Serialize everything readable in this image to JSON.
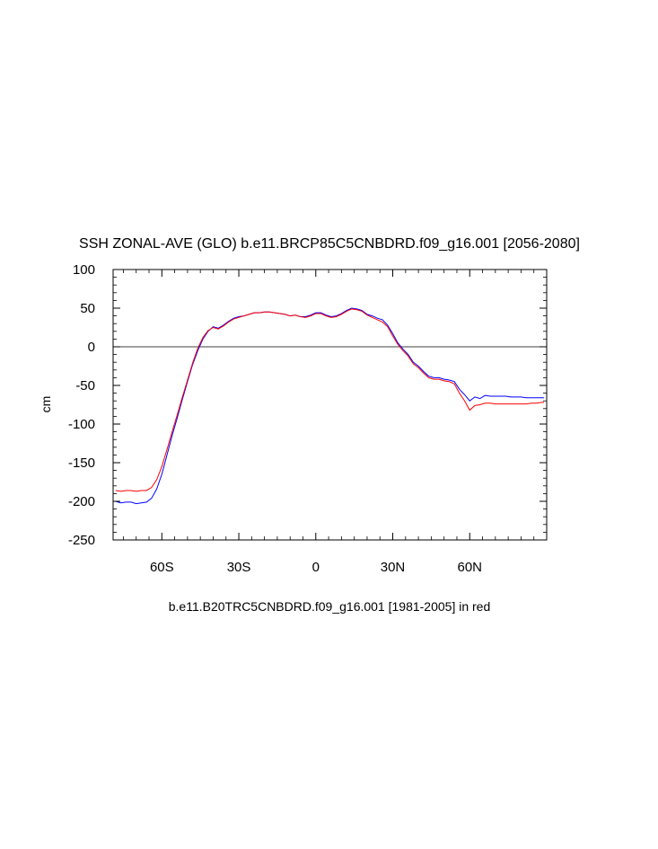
{
  "chart_data": {
    "type": "line",
    "title": "SSH ZONAL-AVE (GLO) b.e11.BRCP85C5CNBDRD.f09_g16.001 [2056-2080]",
    "ylabel": "cm",
    "xlabel": "b.e11.B20TRC5CNBDRD.f09_g16.001 [1981-2005] in red",
    "xlim": [
      -79,
      90
    ],
    "ylim": [
      -250,
      100
    ],
    "x_ticks": [
      {
        "value": -60,
        "label": "60S"
      },
      {
        "value": -30,
        "label": "30S"
      },
      {
        "value": 0,
        "label": "0"
      },
      {
        "value": 30,
        "label": "30N"
      },
      {
        "value": 60,
        "label": "60N"
      }
    ],
    "y_ticks": [
      {
        "value": 100,
        "label": "100"
      },
      {
        "value": 50,
        "label": "50"
      },
      {
        "value": 0,
        "label": "0"
      },
      {
        "value": -50,
        "label": "-50"
      },
      {
        "value": -100,
        "label": "-100"
      },
      {
        "value": -150,
        "label": "-150"
      },
      {
        "value": -200,
        "label": "-200"
      },
      {
        "value": -250,
        "label": "-250"
      }
    ],
    "reference_line": 0,
    "grid": false,
    "series": [
      {
        "color": "#0000ff",
        "x": [
          -78,
          -76,
          -74,
          -72,
          -70,
          -68,
          -66,
          -64,
          -62,
          -60,
          -58,
          -56,
          -54,
          -52,
          -50,
          -48,
          -46,
          -44,
          -42,
          -40,
          -38,
          -36,
          -34,
          -32,
          -30,
          -28,
          -26,
          -24,
          -22,
          -20,
          -18,
          -16,
          -14,
          -12,
          -10,
          -8,
          -6,
          -4,
          -2,
          0,
          2,
          4,
          6,
          8,
          10,
          12,
          14,
          16,
          18,
          20,
          22,
          24,
          26,
          28,
          30,
          32,
          34,
          36,
          38,
          40,
          42,
          44,
          46,
          48,
          50,
          52,
          54,
          56,
          58,
          60,
          62,
          64,
          66,
          68,
          70,
          72,
          74,
          76,
          78,
          80,
          82,
          84,
          86,
          88,
          89
        ],
        "y": [
          -200,
          -202,
          -201,
          -201,
          -203,
          -202,
          -201,
          -196,
          -184,
          -165,
          -140,
          -115,
          -92,
          -68,
          -45,
          -23,
          -5,
          10,
          20,
          26,
          24,
          28,
          33,
          37,
          39,
          40,
          42,
          44,
          44,
          45,
          45,
          44,
          43,
          42,
          40,
          41,
          39,
          39,
          41,
          44,
          44,
          41,
          39,
          40,
          43,
          47,
          50,
          49,
          47,
          42,
          40,
          37,
          35,
          28,
          17,
          5,
          -3,
          -10,
          -20,
          -25,
          -32,
          -38,
          -40,
          -40,
          -42,
          -43,
          -45,
          -55,
          -62,
          -70,
          -65,
          -67,
          -63,
          -64,
          -64,
          -64,
          -64,
          -65,
          -65,
          -65,
          -66,
          -66,
          -66,
          -66,
          -66
        ]
      },
      {
        "color": "#ff0000",
        "x": [
          -78,
          -76,
          -74,
          -72,
          -70,
          -68,
          -66,
          -64,
          -62,
          -60,
          -58,
          -56,
          -54,
          -52,
          -50,
          -48,
          -46,
          -44,
          -42,
          -40,
          -38,
          -36,
          -34,
          -32,
          -30,
          -28,
          -26,
          -24,
          -22,
          -20,
          -18,
          -16,
          -14,
          -12,
          -10,
          -8,
          -6,
          -4,
          -2,
          0,
          2,
          4,
          6,
          8,
          10,
          12,
          14,
          16,
          18,
          20,
          22,
          24,
          26,
          28,
          30,
          32,
          34,
          36,
          38,
          40,
          42,
          44,
          46,
          48,
          50,
          52,
          54,
          56,
          58,
          60,
          62,
          64,
          66,
          68,
          70,
          72,
          74,
          76,
          78,
          80,
          82,
          84,
          86,
          88,
          89
        ],
        "y": [
          -186,
          -187,
          -186,
          -186,
          -187,
          -186,
          -186,
          -182,
          -172,
          -155,
          -133,
          -110,
          -88,
          -65,
          -43,
          -21,
          -2,
          12,
          21,
          25,
          23,
          27,
          32,
          36,
          38,
          40,
          42,
          44,
          44,
          45,
          45,
          44,
          43,
          42,
          40,
          41,
          39,
          38,
          40,
          43,
          43,
          40,
          38,
          39,
          42,
          46,
          49,
          48,
          46,
          41,
          38,
          35,
          32,
          26,
          14,
          3,
          -5,
          -12,
          -22,
          -27,
          -34,
          -40,
          -42,
          -42,
          -44,
          -45,
          -48,
          -60,
          -70,
          -82,
          -76,
          -75,
          -73,
          -73,
          -74,
          -74,
          -74,
          -74,
          -74,
          -74,
          -74,
          -73,
          -73,
          -72,
          -72
        ]
      }
    ]
  }
}
